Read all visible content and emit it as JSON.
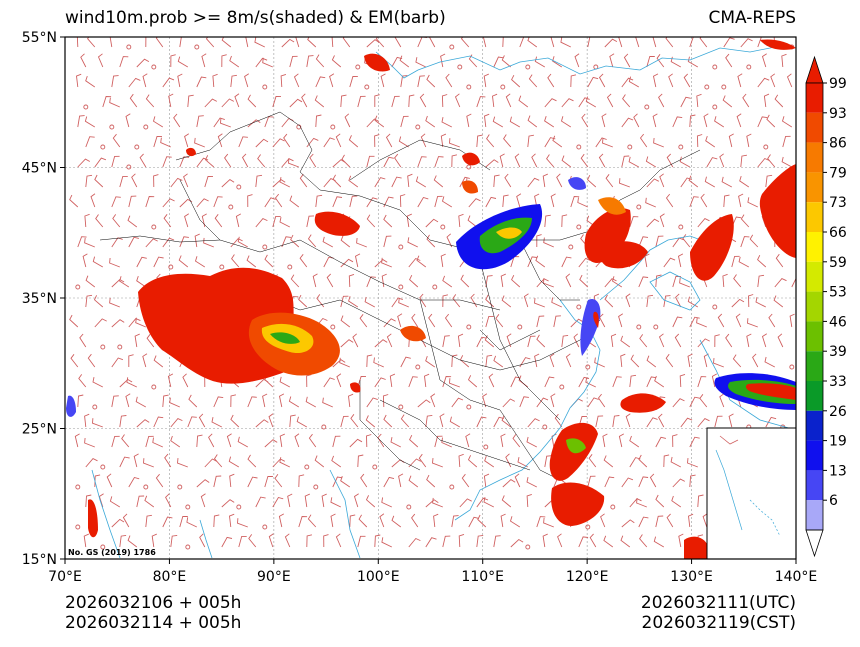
{
  "title": {
    "left": "wind10m.prob >= 8m/s(shaded) & EM(barb)",
    "right": "CMA-REPS"
  },
  "map": {
    "projection": "lat-lon",
    "lon_range": [
      70,
      140
    ],
    "lat_range": [
      15,
      55
    ],
    "lon_ticks": [
      "70°E",
      "80°E",
      "90°E",
      "100°E",
      "110°E",
      "120°E",
      "130°E",
      "140°E"
    ],
    "lat_ticks": [
      "55°N",
      "45°N",
      "35°N",
      "25°N",
      "15°N"
    ],
    "credit": "No. GS (2019) 1786",
    "inset": "South China Sea islands"
  },
  "colorbar": {
    "labels": [
      "99",
      "93",
      "86",
      "79",
      "73",
      "66",
      "59",
      "53",
      "46",
      "39",
      "33",
      "26",
      "19",
      "13",
      "6"
    ],
    "colors": [
      "#e81c00",
      "#f04a00",
      "#f77a00",
      "#f99400",
      "#fcc800",
      "#fff200",
      "#d4ea00",
      "#a4d600",
      "#6cc000",
      "#2aa816",
      "#0a9a28",
      "#0a22cc",
      "#1010ee",
      "#4646f4",
      "#a8a8f8"
    ]
  },
  "footer": {
    "init_utc": "2026032106  +  005h",
    "init_cst": "2026032114  +  005h",
    "valid_utc": "2026032111(UTC)",
    "valid_cst": "2026032119(CST)"
  }
}
